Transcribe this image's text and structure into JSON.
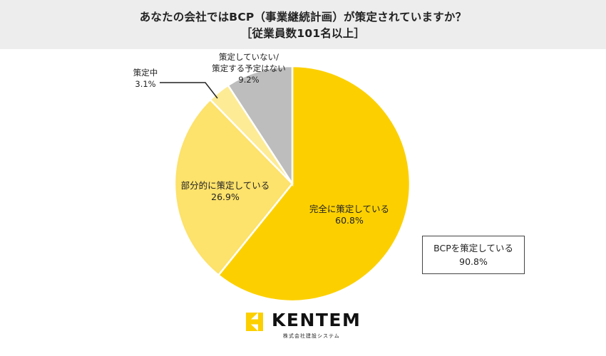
{
  "title": {
    "line1": "あなたの会社ではBCP（事業継続計画）が策定されていますか？",
    "line2": "［従業員数101名以上］"
  },
  "summary": {
    "label": "BCPを策定している",
    "value": "90.8%"
  },
  "logo": {
    "name": "KENTEM",
    "subtitle": "株式会社建設システム"
  },
  "colors": {
    "complete": "#fcd000",
    "partial": "#fde26b",
    "in_progress": "#fdeb95",
    "none": "#bdbdbd",
    "header_bg": "#ededed"
  },
  "chart_data": {
    "type": "pie",
    "title": "あなたの会社ではBCP（事業継続計画）が策定されていますか？",
    "subtitle": "［従業員数101名以上］",
    "series": [
      {
        "label": [
          "完全に策定している"
        ],
        "value": 60.8,
        "display": "60.8%",
        "color": "#fcd000"
      },
      {
        "label": [
          "部分的に策定している"
        ],
        "value": 26.9,
        "display": "26.9%",
        "color": "#fde26b"
      },
      {
        "label": [
          "策定中"
        ],
        "value": 3.1,
        "display": "3.1%",
        "color": "#fdeb95"
      },
      {
        "label": [
          "策定していない/",
          "策定する予定はない"
        ],
        "value": 9.2,
        "display": "9.2%",
        "color": "#bdbdbd"
      }
    ]
  }
}
